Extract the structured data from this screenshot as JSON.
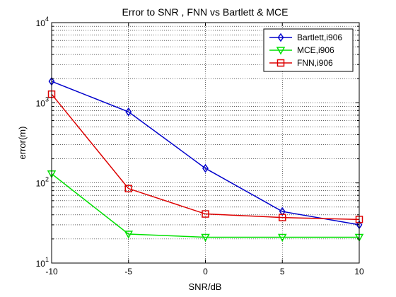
{
  "chart_data": {
    "type": "line",
    "title": "Error to SNR , FNN vs Bartlett & MCE",
    "xlabel": "SNR/dB",
    "ylabel": "error(m)",
    "xscale": "linear",
    "yscale": "log",
    "xlim": [
      -10,
      10
    ],
    "ylim": [
      10,
      10000
    ],
    "xticks": [
      -10,
      -5,
      0,
      5,
      10
    ],
    "xtick_labels": [
      "-10",
      "-5",
      "0",
      "5",
      "10"
    ],
    "yticks": [
      10,
      100,
      1000,
      10000
    ],
    "ytick_labels": [
      {
        "base": "10",
        "exp": "1"
      },
      {
        "base": "10",
        "exp": "2"
      },
      {
        "base": "10",
        "exp": "3"
      },
      {
        "base": "10",
        "exp": "4"
      }
    ],
    "grid": "dotted, major and minor",
    "legend_position": "top-right",
    "x": [
      -10,
      -5,
      0,
      5,
      10
    ],
    "series": [
      {
        "name": "Bartlett,i906",
        "color": "#0000cc",
        "marker": "diamond",
        "values": [
          1850,
          770,
          152,
          44,
          30
        ]
      },
      {
        "name": "MCE,i906",
        "color": "#00e000",
        "marker": "triangle-down",
        "values": [
          130,
          23,
          21,
          21,
          21
        ]
      },
      {
        "name": "FNN,i906",
        "color": "#dd0000",
        "marker": "square",
        "values": [
          1280,
          85,
          41,
          37,
          35
        ]
      }
    ]
  }
}
